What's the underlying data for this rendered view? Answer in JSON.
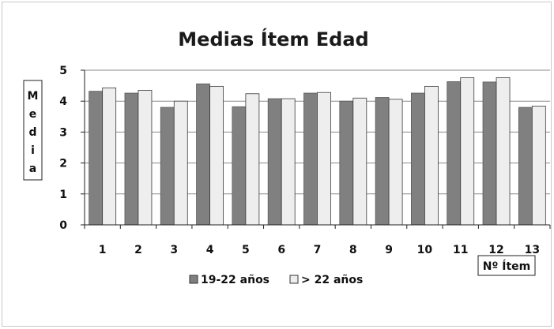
{
  "chart_data": {
    "type": "bar",
    "title": "Medias Ítem Edad",
    "ylabel": "Media",
    "xlabel": "Nº Ítem",
    "ylim": [
      0,
      5
    ],
    "yticks": [
      0,
      1,
      2,
      3,
      4,
      5
    ],
    "grid": true,
    "legend_position": "bottom",
    "categories": [
      "1",
      "2",
      "3",
      "4",
      "5",
      "6",
      "7",
      "8",
      "9",
      "10",
      "11",
      "12",
      "13"
    ],
    "series": [
      {
        "name": "19-22 años",
        "color": "#808080",
        "values": [
          4.32,
          4.26,
          3.8,
          4.56,
          3.82,
          4.08,
          4.26,
          4.0,
          4.12,
          4.26,
          4.63,
          4.62,
          3.8
        ]
      },
      {
        "name": "> 22 años",
        "color": "#eeeeee",
        "values": [
          4.43,
          4.35,
          4.0,
          4.48,
          4.24,
          4.08,
          4.28,
          4.1,
          4.06,
          4.48,
          4.76,
          4.76,
          3.84
        ]
      }
    ]
  }
}
